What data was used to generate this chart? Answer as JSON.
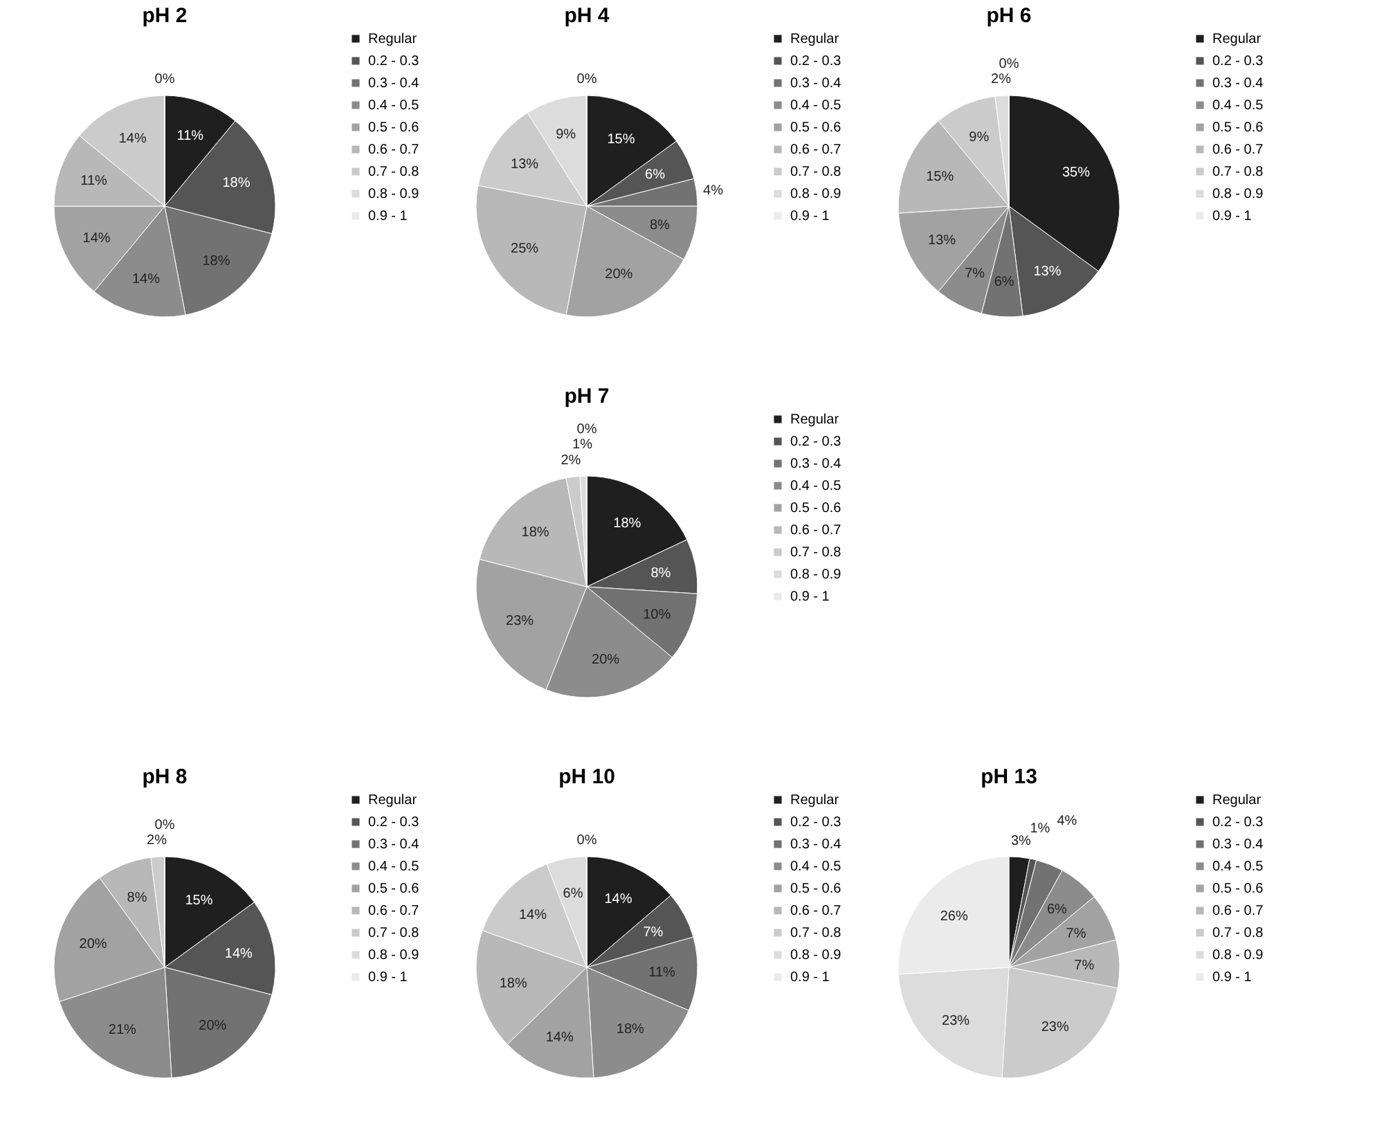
{
  "chart_data": [
    {
      "type": "pie",
      "title": "pH 2",
      "legend": "right",
      "categories": [
        "Regular",
        "0.2 - 0.3",
        "0.3 - 0.4",
        "0.4 - 0.5",
        "0.5 - 0.6",
        "0.6 - 0.7",
        "0.7 - 0.8",
        "0.8 - 0.9",
        "0.9 - 1"
      ],
      "values": [
        11,
        18,
        18,
        14,
        14,
        11,
        14,
        0,
        0
      ],
      "value_labels": [
        "11%",
        "18%",
        "18%",
        "14%",
        "14%",
        "11%",
        "14%",
        "0%",
        null
      ],
      "colors": [
        "#1f1f1f",
        "#555555",
        "#727272",
        "#8c8c8c",
        "#a2a2a2",
        "#b8b8b8",
        "#cbcbcb",
        "#dcdcdc",
        "#ebebeb"
      ]
    },
    {
      "type": "pie",
      "title": "pH 4",
      "legend": "right",
      "categories": [
        "Regular",
        "0.2 - 0.3",
        "0.3 - 0.4",
        "0.4 - 0.5",
        "0.5 - 0.6",
        "0.6 - 0.7",
        "0.7 - 0.8",
        "0.8 - 0.9",
        "0.9 - 1"
      ],
      "values": [
        15,
        6,
        4,
        8,
        20,
        25,
        13,
        9,
        0
      ],
      "value_labels": [
        "15%",
        "6%",
        "4%",
        "8%",
        "20%",
        "25%",
        "13%",
        "9%",
        "0%"
      ],
      "colors": [
        "#1f1f1f",
        "#555555",
        "#727272",
        "#8c8c8c",
        "#a2a2a2",
        "#b8b8b8",
        "#cbcbcb",
        "#dcdcdc",
        "#ebebeb"
      ]
    },
    {
      "type": "pie",
      "title": "pH 6",
      "legend": "right",
      "categories": [
        "Regular",
        "0.2 - 0.3",
        "0.3 - 0.4",
        "0.4 - 0.5",
        "0.5 - 0.6",
        "0.6 - 0.7",
        "0.7 - 0.8",
        "0.8 - 0.9",
        "0.9 - 1"
      ],
      "values": [
        35,
        13,
        6,
        7,
        13,
        15,
        9,
        2,
        0
      ],
      "value_labels": [
        "35%",
        "13%",
        "6%",
        "7%",
        "13%",
        "15%",
        "9%",
        "2%",
        "0%"
      ],
      "colors": [
        "#1f1f1f",
        "#555555",
        "#727272",
        "#8c8c8c",
        "#a2a2a2",
        "#b8b8b8",
        "#cbcbcb",
        "#dcdcdc",
        "#ebebeb"
      ]
    },
    {
      "type": "pie",
      "title": "pH 7",
      "legend": "right",
      "categories": [
        "Regular",
        "0.2 - 0.3",
        "0.3 - 0.4",
        "0.4 - 0.5",
        "0.5 - 0.6",
        "0.6 - 0.7",
        "0.7 - 0.8",
        "0.8 - 0.9",
        "0.9 - 1"
      ],
      "values": [
        18,
        8,
        10,
        20,
        23,
        18,
        2,
        1,
        0
      ],
      "value_labels": [
        "18%",
        "8%",
        "10%",
        "20%",
        "23%",
        "18%",
        "2%",
        "1%",
        "0%"
      ],
      "colors": [
        "#1f1f1f",
        "#555555",
        "#727272",
        "#8c8c8c",
        "#a2a2a2",
        "#b8b8b8",
        "#cbcbcb",
        "#dcdcdc",
        "#ebebeb"
      ]
    },
    {
      "type": "pie",
      "title": "pH 8",
      "legend": "right",
      "categories": [
        "Regular",
        "0.2 - 0.3",
        "0.3 - 0.4",
        "0.4 - 0.5",
        "0.5 - 0.6",
        "0.6 - 0.7",
        "0.7 - 0.8",
        "0.8 - 0.9",
        "0.9 - 1"
      ],
      "values": [
        15,
        14,
        20,
        21,
        20,
        8,
        2,
        0,
        0
      ],
      "value_labels": [
        "15%",
        "14%",
        "20%",
        "21%",
        "20%",
        "8%",
        "2%",
        "0%",
        null
      ],
      "colors": [
        "#1f1f1f",
        "#555555",
        "#727272",
        "#8c8c8c",
        "#a2a2a2",
        "#b8b8b8",
        "#cbcbcb",
        "#dcdcdc",
        "#ebebeb"
      ]
    },
    {
      "type": "pie",
      "title": "pH 10",
      "legend": "right",
      "categories": [
        "Regular",
        "0.2 - 0.3",
        "0.3 - 0.4",
        "0.4 - 0.5",
        "0.5 - 0.6",
        "0.6 - 0.7",
        "0.7 - 0.8",
        "0.8 - 0.9",
        "0.9 - 1"
      ],
      "values": [
        14,
        7,
        11,
        18,
        14,
        18,
        14,
        6,
        0
      ],
      "value_labels": [
        "14%",
        "7%",
        "11%",
        "18%",
        "14%",
        "18%",
        "14%",
        "6%",
        "0%"
      ],
      "colors": [
        "#1f1f1f",
        "#555555",
        "#727272",
        "#8c8c8c",
        "#a2a2a2",
        "#b8b8b8",
        "#cbcbcb",
        "#dcdcdc",
        "#ebebeb"
      ]
    },
    {
      "type": "pie",
      "title": "pH 13",
      "legend": "right",
      "categories": [
        "Regular",
        "0.2 - 0.3",
        "0.3 - 0.4",
        "0.4 - 0.5",
        "0.5 - 0.6",
        "0.6 - 0.7",
        "0.7 - 0.8",
        "0.8 - 0.9",
        "0.9 - 1"
      ],
      "values": [
        3,
        1,
        4,
        6,
        7,
        7,
        23,
        23,
        26
      ],
      "value_labels": [
        "3%",
        "1%",
        "4%",
        "6%",
        "7%",
        "7%",
        "23%",
        "23%",
        "26%"
      ],
      "colors": [
        "#1f1f1f",
        "#555555",
        "#727272",
        "#8c8c8c",
        "#a2a2a2",
        "#b8b8b8",
        "#cbcbcb",
        "#dcdcdc",
        "#ebebeb"
      ]
    }
  ]
}
